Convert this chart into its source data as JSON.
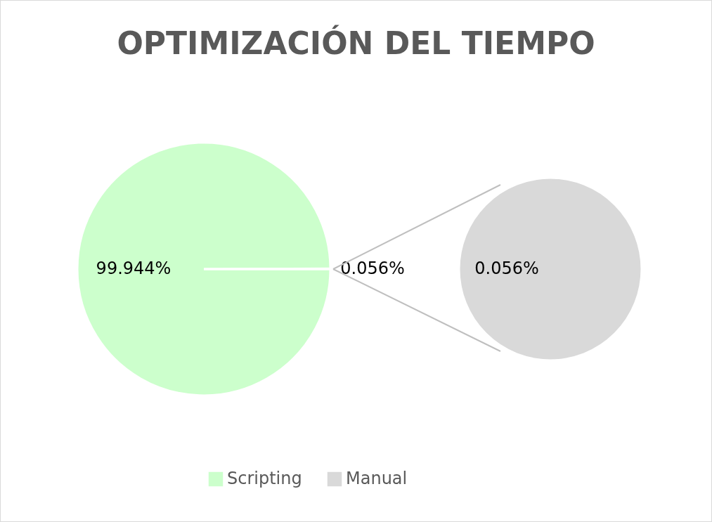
{
  "chart_data": [
    {
      "type": "pie",
      "title": "OPTIMIZACIÓN DEL TIEMPO",
      "categories": [
        "Scripting",
        "Manual"
      ],
      "values": [
        99.944,
        0.056
      ],
      "value_labels": [
        "99.944%",
        "0.056%"
      ],
      "colors": [
        "#ccffcc",
        "#d9d9d9"
      ],
      "legend": "bottom"
    },
    {
      "type": "pie",
      "categories": [
        null
      ],
      "values": [
        0.056
      ],
      "value_labels": [
        "0.056%"
      ],
      "colors": [
        "#d9d9d9"
      ]
    }
  ]
}
